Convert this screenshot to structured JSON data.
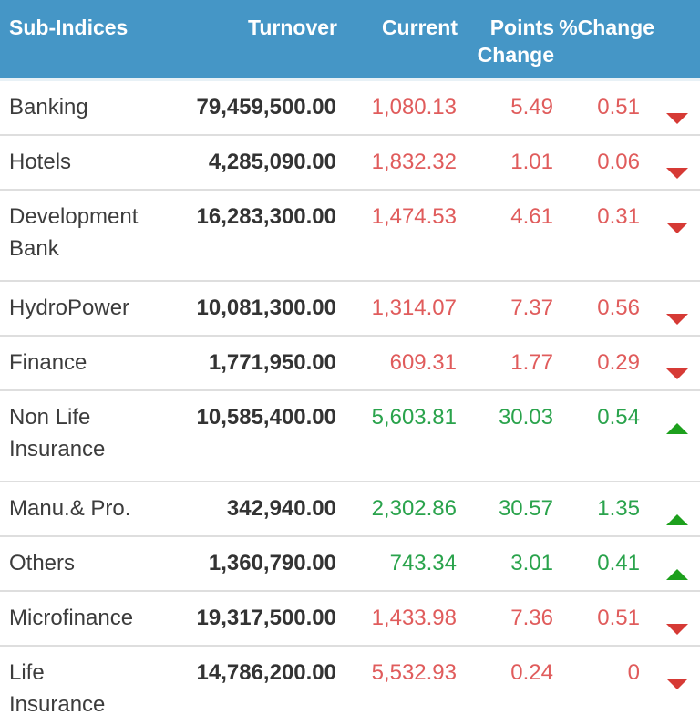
{
  "widget_title": "sub-indices-market-table",
  "colors": {
    "header_bg": "#4596c6",
    "header_text": "#ffffff",
    "negative_text": "#e05c5c",
    "positive_text": "#2aa34c",
    "arrow_down": "#d63a35",
    "arrow_up": "#1da01d",
    "body_text": "#3c3c3c"
  },
  "table": {
    "header": {
      "sub_indices": "Sub-Indices",
      "turnover": "Turnover",
      "current": "Current",
      "points_change": "Points Change",
      "pct_change": "%Change"
    },
    "rows": [
      {
        "name": "Banking",
        "turnover": "79,459,500.00",
        "current": "1,080.13",
        "points_change": "5.49",
        "pct_change": "0.51",
        "direction": "down"
      },
      {
        "name": "Hotels",
        "turnover": "4,285,090.00",
        "current": "1,832.32",
        "points_change": "1.01",
        "pct_change": "0.06",
        "direction": "down"
      },
      {
        "name": "Development Bank",
        "turnover": "16,283,300.00",
        "current": "1,474.53",
        "points_change": "4.61",
        "pct_change": "0.31",
        "direction": "down"
      },
      {
        "name": "HydroPower",
        "turnover": "10,081,300.00",
        "current": "1,314.07",
        "points_change": "7.37",
        "pct_change": "0.56",
        "direction": "down"
      },
      {
        "name": "Finance",
        "turnover": "1,771,950.00",
        "current": "609.31",
        "points_change": "1.77",
        "pct_change": "0.29",
        "direction": "down"
      },
      {
        "name": "Non Life Insurance",
        "turnover": "10,585,400.00",
        "current": "5,603.81",
        "points_change": "30.03",
        "pct_change": "0.54",
        "direction": "up"
      },
      {
        "name": "Manu.& Pro.",
        "turnover": "342,940.00",
        "current": "2,302.86",
        "points_change": "30.57",
        "pct_change": "1.35",
        "direction": "up"
      },
      {
        "name": "Others",
        "turnover": "1,360,790.00",
        "current": "743.34",
        "points_change": "3.01",
        "pct_change": "0.41",
        "direction": "up"
      },
      {
        "name": "Microfinance",
        "turnover": "19,317,500.00",
        "current": "1,433.98",
        "points_change": "7.36",
        "pct_change": "0.51",
        "direction": "down"
      },
      {
        "name": "Life Insurance",
        "turnover": "14,786,200.00",
        "current": "5,532.93",
        "points_change": "0.24",
        "pct_change": "0",
        "direction": "down"
      }
    ]
  }
}
